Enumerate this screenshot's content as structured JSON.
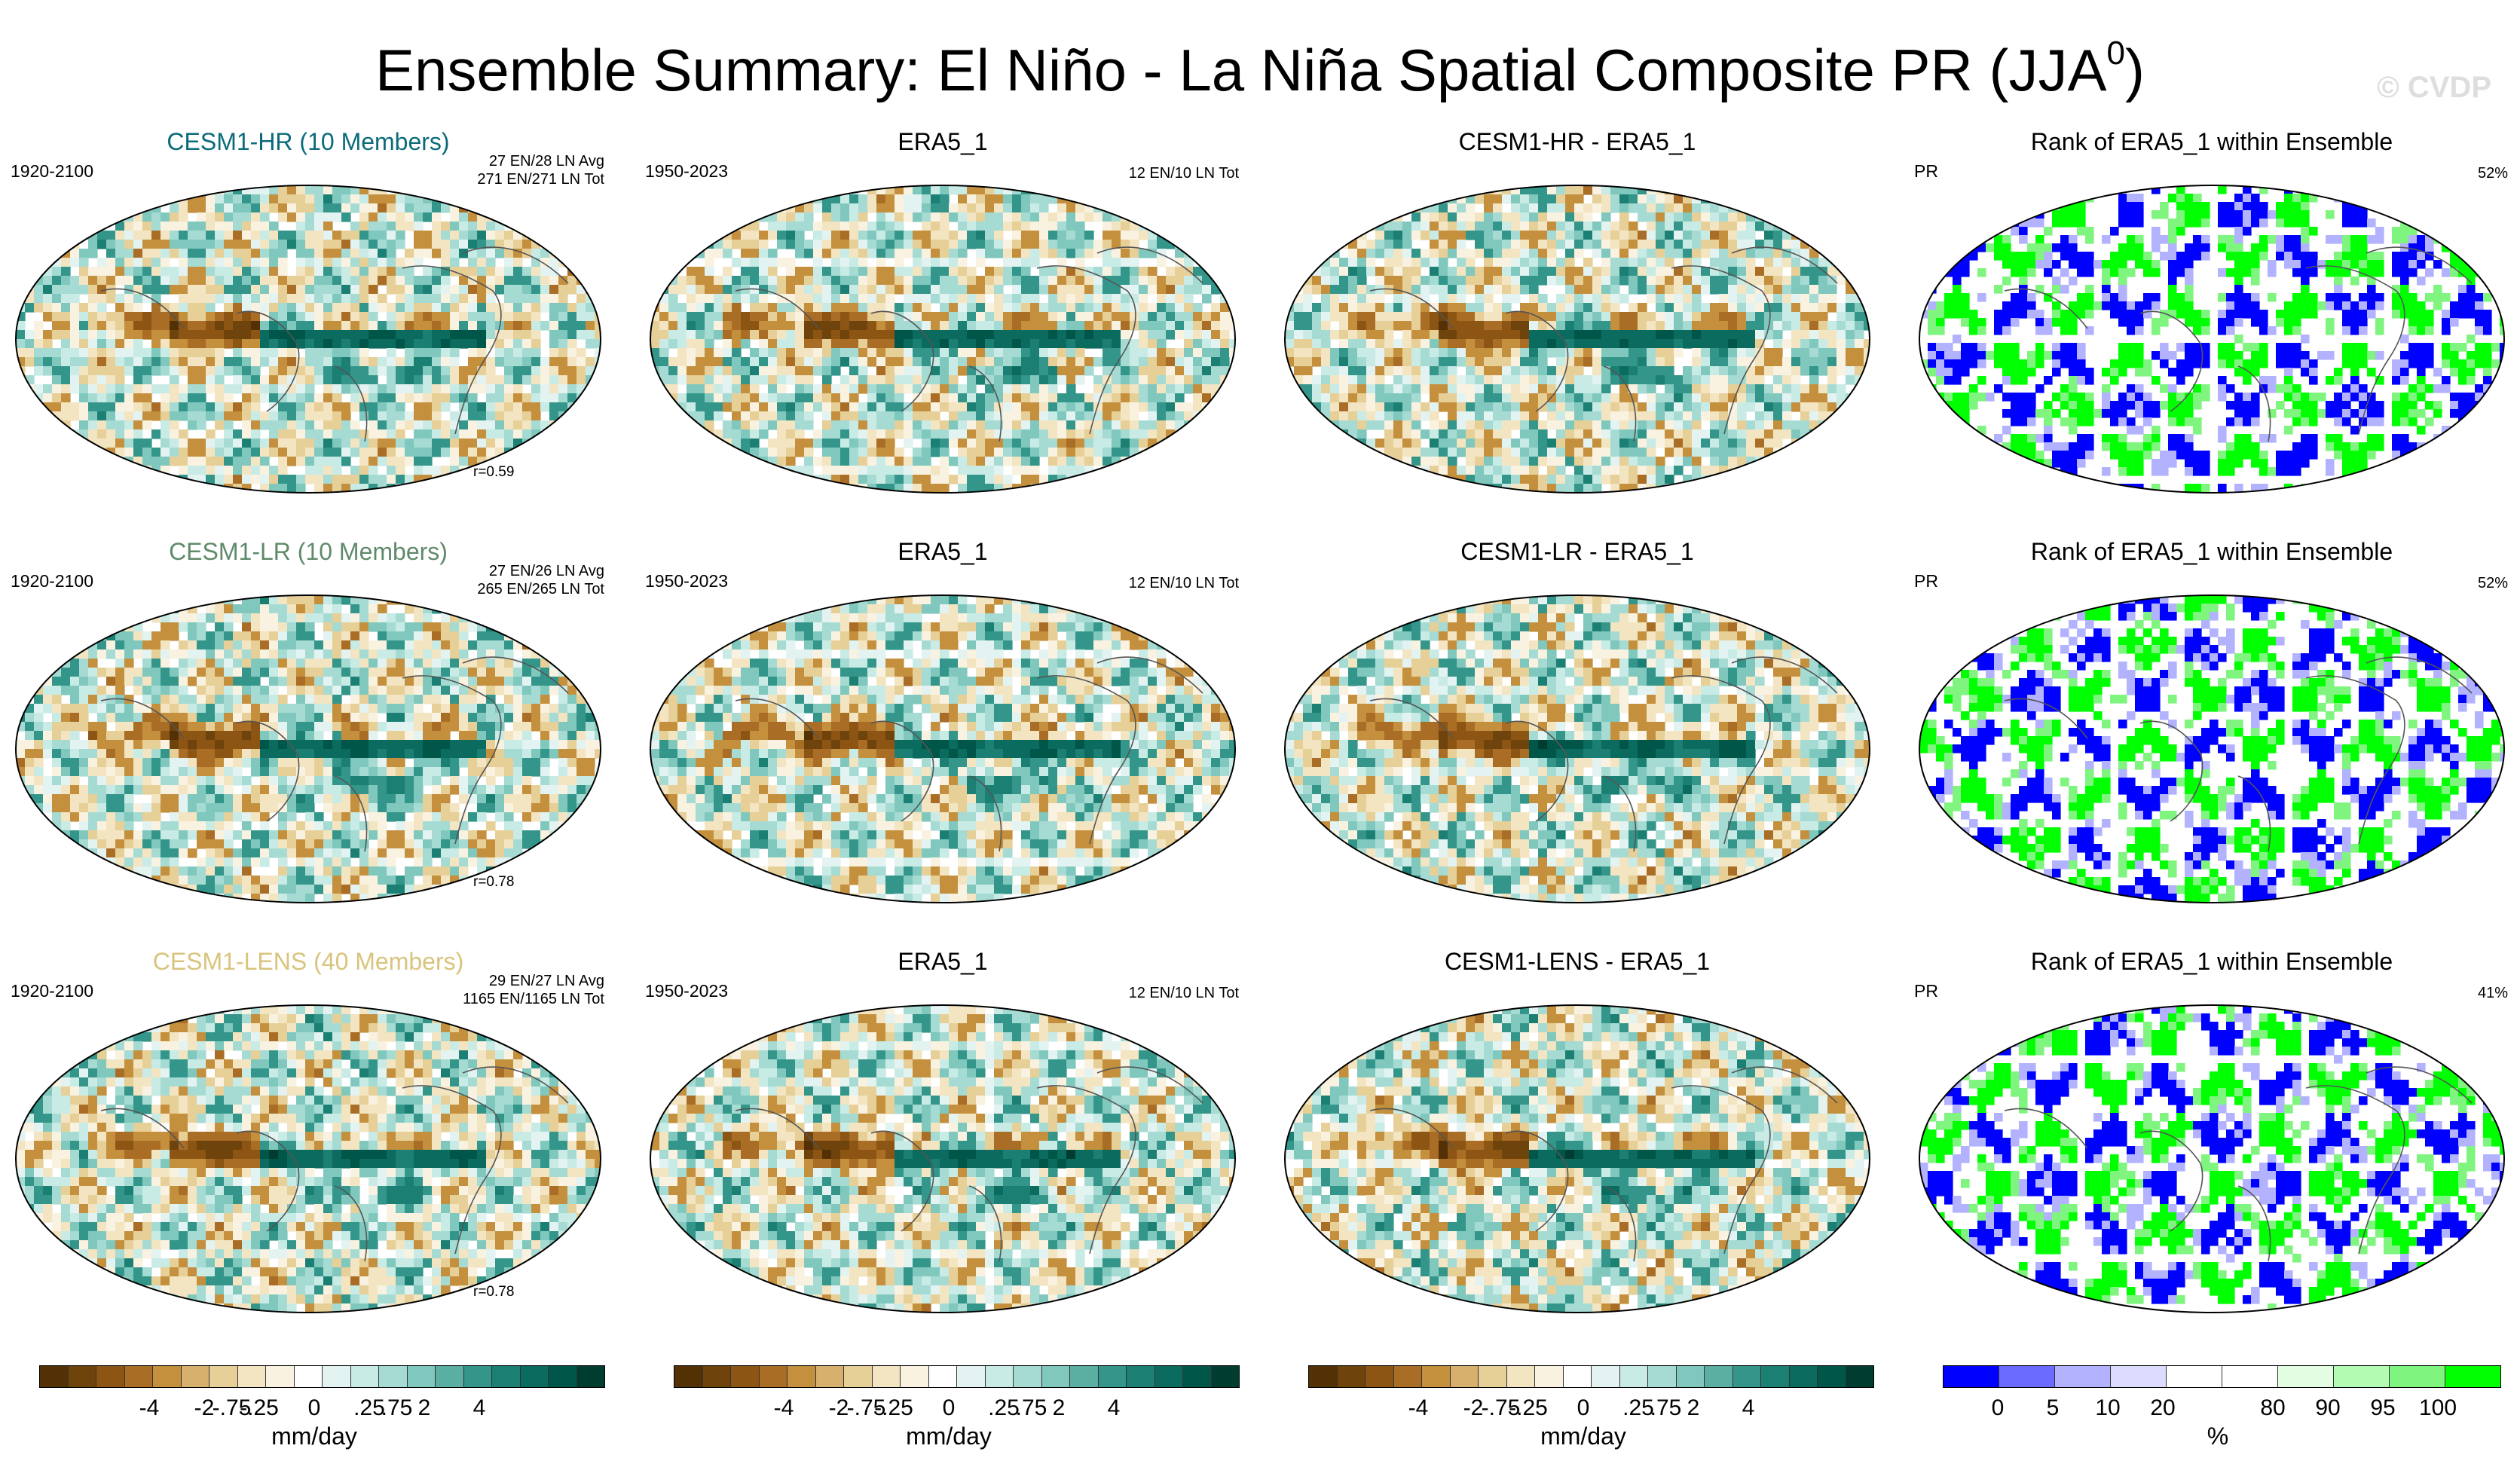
{
  "title": "Ensemble Summary: El Niño - La Niña Spatial Composite PR (JJA",
  "title_sup": "0",
  "title_close": ")",
  "watermark": "© CVDP",
  "colors": {
    "div": [
      "#543005",
      "#6e430c",
      "#8c5514",
      "#a96d26",
      "#c4903e",
      "#d6b06c",
      "#e7cf98",
      "#f3e5c1",
      "#faf2e0",
      "#ffffff",
      "#e2f3f1",
      "#c9ebe6",
      "#a6dbd4",
      "#80c8bd",
      "#5aaea2",
      "#34968a",
      "#1c7f73",
      "#0b6b5e",
      "#01564a",
      "#003c30"
    ],
    "rank": [
      "#0000ff",
      "#6b6bff",
      "#b2b2ff",
      "#dcdcff",
      "#ffffff",
      "#ffffff",
      "#e2fde2",
      "#b3fab3",
      "#7ff57f",
      "#00ff00"
    ],
    "hr_title": "#0b6b7a",
    "lr_title": "#5f8a6a",
    "lens_title": "#d8c47d"
  },
  "rows": [
    {
      "model": {
        "title": "CESM1-HR (10 Members)",
        "period": "1920-2100",
        "info1": "27 EN/28 LN Avg",
        "info2": "271 EN/271 LN Tot",
        "corr": "r=0.59"
      },
      "obs": {
        "title": "ERA5_1",
        "period": "1950-2023",
        "info": "12 EN/10 LN Tot"
      },
      "diff": {
        "title": "CESM1-HR - ERA5_1"
      },
      "rank": {
        "title": "Rank of ERA5_1 within Ensemble",
        "var": "PR",
        "pct": "52%"
      }
    },
    {
      "model": {
        "title": "CESM1-LR (10 Members)",
        "period": "1920-2100",
        "info1": "27 EN/26 LN Avg",
        "info2": "265 EN/265 LN Tot",
        "corr": "r=0.78"
      },
      "obs": {
        "title": "ERA5_1",
        "period": "1950-2023",
        "info": "12 EN/10 LN Tot"
      },
      "diff": {
        "title": "CESM1-LR - ERA5_1"
      },
      "rank": {
        "title": "Rank of ERA5_1 within Ensemble",
        "var": "PR",
        "pct": "52%"
      }
    },
    {
      "model": {
        "title": "CESM1-LENS (40 Members)",
        "period": "1920-2100",
        "info1": "29 EN/27 LN Avg",
        "info2": "1165 EN/1165 LN Tot",
        "corr": "r=0.78"
      },
      "obs": {
        "title": "ERA5_1",
        "period": "1950-2023",
        "info": "12 EN/10 LN Tot"
      },
      "diff": {
        "title": "CESM1-LENS - ERA5_1"
      },
      "rank": {
        "title": "Rank of ERA5_1 within Ensemble",
        "var": "PR",
        "pct": "41%"
      }
    }
  ],
  "colorbar": {
    "div_ticks": [
      "-4",
      "-2",
      "-.75",
      "-.25",
      "0",
      ".25",
      ".75",
      "2",
      "4"
    ],
    "div_unit": "mm/day",
    "rank_ticks": [
      "0",
      "5",
      "10",
      "20",
      "80",
      "90",
      "95",
      "100"
    ],
    "rank_unit": "%"
  },
  "chart_data": {
    "type": "heatmap",
    "title": "Ensemble Summary: El Niño - La Niña Spatial Composite PR (JJA0)",
    "variable": "PR",
    "season": "JJA0",
    "units": "mm/day",
    "levels": [
      -4,
      -2,
      -0.75,
      -0.25,
      0,
      0.25,
      0.75,
      2,
      4
    ],
    "rank_levels": [
      0,
      5,
      10,
      20,
      80,
      90,
      95,
      100
    ],
    "panels": [
      {
        "row": 1,
        "col": 1,
        "title": "CESM1-HR (10 Members)",
        "years": "1920-2100",
        "pattern_corr": 0.59
      },
      {
        "row": 1,
        "col": 2,
        "title": "ERA5_1",
        "years": "1950-2023"
      },
      {
        "row": 1,
        "col": 3,
        "title": "CESM1-HR - ERA5_1"
      },
      {
        "row": 1,
        "col": 4,
        "title": "Rank of ERA5_1 within Ensemble",
        "percent": 52
      },
      {
        "row": 2,
        "col": 1,
        "title": "CESM1-LR (10 Members)",
        "years": "1920-2100",
        "pattern_corr": 0.78
      },
      {
        "row": 2,
        "col": 2,
        "title": "ERA5_1",
        "years": "1950-2023"
      },
      {
        "row": 2,
        "col": 3,
        "title": "CESM1-LR - ERA5_1"
      },
      {
        "row": 2,
        "col": 4,
        "title": "Rank of ERA5_1 within Ensemble",
        "percent": 52
      },
      {
        "row": 3,
        "col": 1,
        "title": "CESM1-LENS (40 Members)",
        "years": "1920-2100",
        "pattern_corr": 0.78
      },
      {
        "row": 3,
        "col": 2,
        "title": "ERA5_1",
        "years": "1950-2023"
      },
      {
        "row": 3,
        "col": 3,
        "title": "CESM1-LENS - ERA5_1"
      },
      {
        "row": 3,
        "col": 4,
        "title": "Rank of ERA5_1 within Ensemble",
        "percent": 41
      }
    ]
  }
}
